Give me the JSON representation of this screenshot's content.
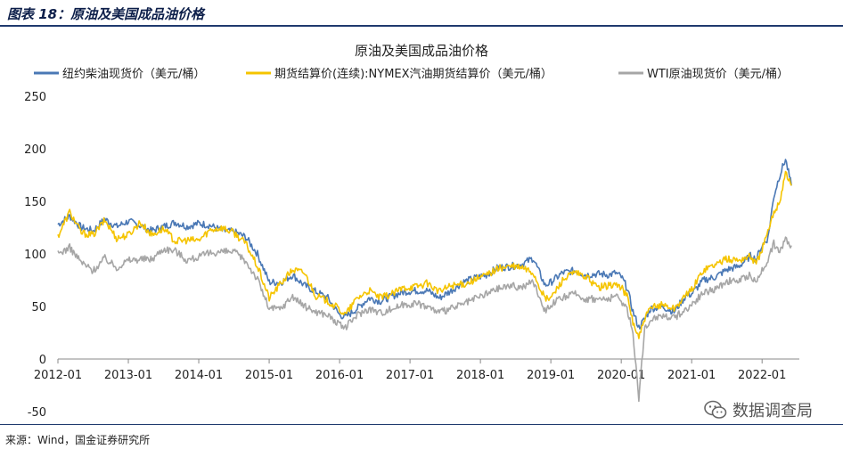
{
  "figure": {
    "caption": "图表 18：原油及美国成品油价格",
    "source": "来源：Wind，国金证券研究所",
    "watermark": "数据调查局",
    "watermark_icon": "wechat-icon"
  },
  "colors": {
    "diesel": "#4a78b5",
    "gasoline": "#f5c400",
    "wti": "#a6a6a6",
    "axis": "#888888",
    "header": "#1f3a6e"
  },
  "chart_data": {
    "type": "line",
    "title": "原油及美国成品油价格",
    "x_ticks": [
      "2012-01",
      "2013-01",
      "2014-01",
      "2015-01",
      "2016-01",
      "2017-01",
      "2018-01",
      "2019-01",
      "2020-01",
      "2021-01",
      "2022-01"
    ],
    "x_range": [
      "2012-01",
      "2022-06"
    ],
    "ylim": [
      -50,
      250
    ],
    "y_ticks": [
      -50,
      0,
      50,
      100,
      150,
      200,
      250
    ],
    "grid": false,
    "legend_position": "top",
    "series": [
      {
        "name": "纽约柴油现货价（美元/桶）",
        "color_key": "diesel",
        "points": [
          [
            "2012-01",
            128
          ],
          [
            "2012-03",
            136
          ],
          [
            "2012-05",
            125
          ],
          [
            "2012-07",
            122
          ],
          [
            "2012-09",
            133
          ],
          [
            "2012-11",
            126
          ],
          [
            "2013-01",
            131
          ],
          [
            "2013-03",
            127
          ],
          [
            "2013-05",
            122
          ],
          [
            "2013-07",
            126
          ],
          [
            "2013-09",
            130
          ],
          [
            "2013-11",
            126
          ],
          [
            "2014-01",
            129
          ],
          [
            "2014-03",
            127
          ],
          [
            "2014-05",
            122
          ],
          [
            "2014-07",
            121
          ],
          [
            "2014-09",
            116
          ],
          [
            "2014-11",
            100
          ],
          [
            "2015-01",
            73
          ],
          [
            "2015-03",
            73
          ],
          [
            "2015-05",
            80
          ],
          [
            "2015-07",
            70
          ],
          [
            "2015-09",
            64
          ],
          [
            "2015-11",
            58
          ],
          [
            "2016-01",
            42
          ],
          [
            "2016-02",
            40
          ],
          [
            "2016-04",
            48
          ],
          [
            "2016-06",
            58
          ],
          [
            "2016-08",
            55
          ],
          [
            "2016-10",
            60
          ],
          [
            "2016-12",
            64
          ],
          [
            "2017-02",
            65
          ],
          [
            "2017-04",
            65
          ],
          [
            "2017-06",
            58
          ],
          [
            "2017-08",
            65
          ],
          [
            "2017-10",
            73
          ],
          [
            "2017-12",
            77
          ],
          [
            "2018-02",
            80
          ],
          [
            "2018-04",
            87
          ],
          [
            "2018-06",
            88
          ],
          [
            "2018-08",
            90
          ],
          [
            "2018-10",
            96
          ],
          [
            "2018-12",
            70
          ],
          [
            "2019-01",
            73
          ],
          [
            "2019-03",
            82
          ],
          [
            "2019-05",
            84
          ],
          [
            "2019-07",
            80
          ],
          [
            "2019-09",
            81
          ],
          [
            "2019-11",
            80
          ],
          [
            "2019-12",
            82
          ],
          [
            "2020-01",
            78
          ],
          [
            "2020-02",
            68
          ],
          [
            "2020-03",
            45
          ],
          [
            "2020-04",
            30
          ],
          [
            "2020-05",
            38
          ],
          [
            "2020-06",
            48
          ],
          [
            "2020-08",
            50
          ],
          [
            "2020-10",
            45
          ],
          [
            "2020-12",
            60
          ],
          [
            "2021-01",
            62
          ],
          [
            "2021-03",
            75
          ],
          [
            "2021-05",
            78
          ],
          [
            "2021-07",
            85
          ],
          [
            "2021-09",
            88
          ],
          [
            "2021-11",
            98
          ],
          [
            "2021-12",
            95
          ],
          [
            "2022-01",
            108
          ],
          [
            "2022-02",
            115
          ],
          [
            "2022-03",
            155
          ],
          [
            "2022-04",
            175
          ],
          [
            "2022-05",
            190
          ],
          [
            "2022-06",
            165
          ]
        ]
      },
      {
        "name": "期货结算价(连续):NYMEX汽油期货结算价（美元/桶）",
        "color_key": "gasoline",
        "points": [
          [
            "2012-01",
            117
          ],
          [
            "2012-03",
            140
          ],
          [
            "2012-05",
            120
          ],
          [
            "2012-07",
            118
          ],
          [
            "2012-09",
            132
          ],
          [
            "2012-11",
            115
          ],
          [
            "2013-01",
            118
          ],
          [
            "2013-03",
            130
          ],
          [
            "2013-05",
            118
          ],
          [
            "2013-07",
            124
          ],
          [
            "2013-09",
            112
          ],
          [
            "2013-11",
            113
          ],
          [
            "2014-01",
            113
          ],
          [
            "2014-03",
            123
          ],
          [
            "2014-05",
            125
          ],
          [
            "2014-07",
            120
          ],
          [
            "2014-09",
            110
          ],
          [
            "2014-11",
            88
          ],
          [
            "2015-01",
            58
          ],
          [
            "2015-03",
            72
          ],
          [
            "2015-05",
            85
          ],
          [
            "2015-07",
            82
          ],
          [
            "2015-09",
            60
          ],
          [
            "2015-11",
            55
          ],
          [
            "2016-01",
            47
          ],
          [
            "2016-02",
            42
          ],
          [
            "2016-04",
            58
          ],
          [
            "2016-06",
            65
          ],
          [
            "2016-08",
            58
          ],
          [
            "2016-10",
            62
          ],
          [
            "2016-12",
            68
          ],
          [
            "2017-02",
            69
          ],
          [
            "2017-04",
            72
          ],
          [
            "2017-06",
            64
          ],
          [
            "2017-08",
            70
          ],
          [
            "2017-10",
            71
          ],
          [
            "2017-12",
            75
          ],
          [
            "2018-02",
            80
          ],
          [
            "2018-04",
            86
          ],
          [
            "2018-06",
            88
          ],
          [
            "2018-08",
            87
          ],
          [
            "2018-10",
            82
          ],
          [
            "2018-12",
            57
          ],
          [
            "2019-01",
            58
          ],
          [
            "2019-03",
            75
          ],
          [
            "2019-05",
            82
          ],
          [
            "2019-07",
            78
          ],
          [
            "2019-09",
            68
          ],
          [
            "2019-11",
            70
          ],
          [
            "2019-12",
            71
          ],
          [
            "2020-01",
            68
          ],
          [
            "2020-02",
            60
          ],
          [
            "2020-03",
            35
          ],
          [
            "2020-04",
            20
          ],
          [
            "2020-05",
            38
          ],
          [
            "2020-06",
            48
          ],
          [
            "2020-08",
            52
          ],
          [
            "2020-10",
            48
          ],
          [
            "2020-12",
            60
          ],
          [
            "2021-01",
            66
          ],
          [
            "2021-03",
            85
          ],
          [
            "2021-05",
            90
          ],
          [
            "2021-07",
            95
          ],
          [
            "2021-09",
            94
          ],
          [
            "2021-11",
            98
          ],
          [
            "2021-12",
            90
          ],
          [
            "2022-01",
            105
          ],
          [
            "2022-02",
            120
          ],
          [
            "2022-03",
            140
          ],
          [
            "2022-04",
            150
          ],
          [
            "2022-05",
            178
          ],
          [
            "2022-06",
            165
          ]
        ]
      },
      {
        "name": "WTI原油现货价（美元/桶）",
        "color_key": "wti",
        "points": [
          [
            "2012-01",
            100
          ],
          [
            "2012-03",
            106
          ],
          [
            "2012-05",
            92
          ],
          [
            "2012-07",
            84
          ],
          [
            "2012-09",
            96
          ],
          [
            "2012-11",
            87
          ],
          [
            "2013-01",
            94
          ],
          [
            "2013-03",
            95
          ],
          [
            "2013-05",
            95
          ],
          [
            "2013-07",
            105
          ],
          [
            "2013-09",
            103
          ],
          [
            "2013-11",
            94
          ],
          [
            "2014-01",
            97
          ],
          [
            "2014-03",
            101
          ],
          [
            "2014-05",
            102
          ],
          [
            "2014-07",
            102
          ],
          [
            "2014-09",
            93
          ],
          [
            "2014-11",
            76
          ],
          [
            "2015-01",
            48
          ],
          [
            "2015-03",
            48
          ],
          [
            "2015-05",
            60
          ],
          [
            "2015-07",
            50
          ],
          [
            "2015-09",
            45
          ],
          [
            "2015-11",
            42
          ],
          [
            "2016-01",
            32
          ],
          [
            "2016-02",
            30
          ],
          [
            "2016-04",
            42
          ],
          [
            "2016-06",
            48
          ],
          [
            "2016-08",
            44
          ],
          [
            "2016-10",
            48
          ],
          [
            "2016-12",
            52
          ],
          [
            "2017-02",
            53
          ],
          [
            "2017-04",
            50
          ],
          [
            "2017-06",
            44
          ],
          [
            "2017-08",
            48
          ],
          [
            "2017-10",
            52
          ],
          [
            "2017-12",
            57
          ],
          [
            "2018-02",
            62
          ],
          [
            "2018-04",
            67
          ],
          [
            "2018-06",
            70
          ],
          [
            "2018-08",
            68
          ],
          [
            "2018-10",
            74
          ],
          [
            "2018-12",
            46
          ],
          [
            "2019-01",
            52
          ],
          [
            "2019-03",
            58
          ],
          [
            "2019-05",
            62
          ],
          [
            "2019-07",
            57
          ],
          [
            "2019-09",
            57
          ],
          [
            "2019-11",
            57
          ],
          [
            "2019-12",
            60
          ],
          [
            "2020-01",
            55
          ],
          [
            "2020-02",
            48
          ],
          [
            "2020-03",
            25
          ],
          [
            "2020-04",
            -37
          ],
          [
            "2020-05",
            28
          ],
          [
            "2020-06",
            38
          ],
          [
            "2020-08",
            42
          ],
          [
            "2020-10",
            39
          ],
          [
            "2020-12",
            47
          ],
          [
            "2021-01",
            52
          ],
          [
            "2021-03",
            63
          ],
          [
            "2021-05",
            66
          ],
          [
            "2021-07",
            74
          ],
          [
            "2021-09",
            74
          ],
          [
            "2021-11",
            80
          ],
          [
            "2021-12",
            72
          ],
          [
            "2022-01",
            85
          ],
          [
            "2022-02",
            95
          ],
          [
            "2022-03",
            110
          ],
          [
            "2022-04",
            100
          ],
          [
            "2022-05",
            115
          ],
          [
            "2022-06",
            108
          ]
        ]
      }
    ]
  }
}
